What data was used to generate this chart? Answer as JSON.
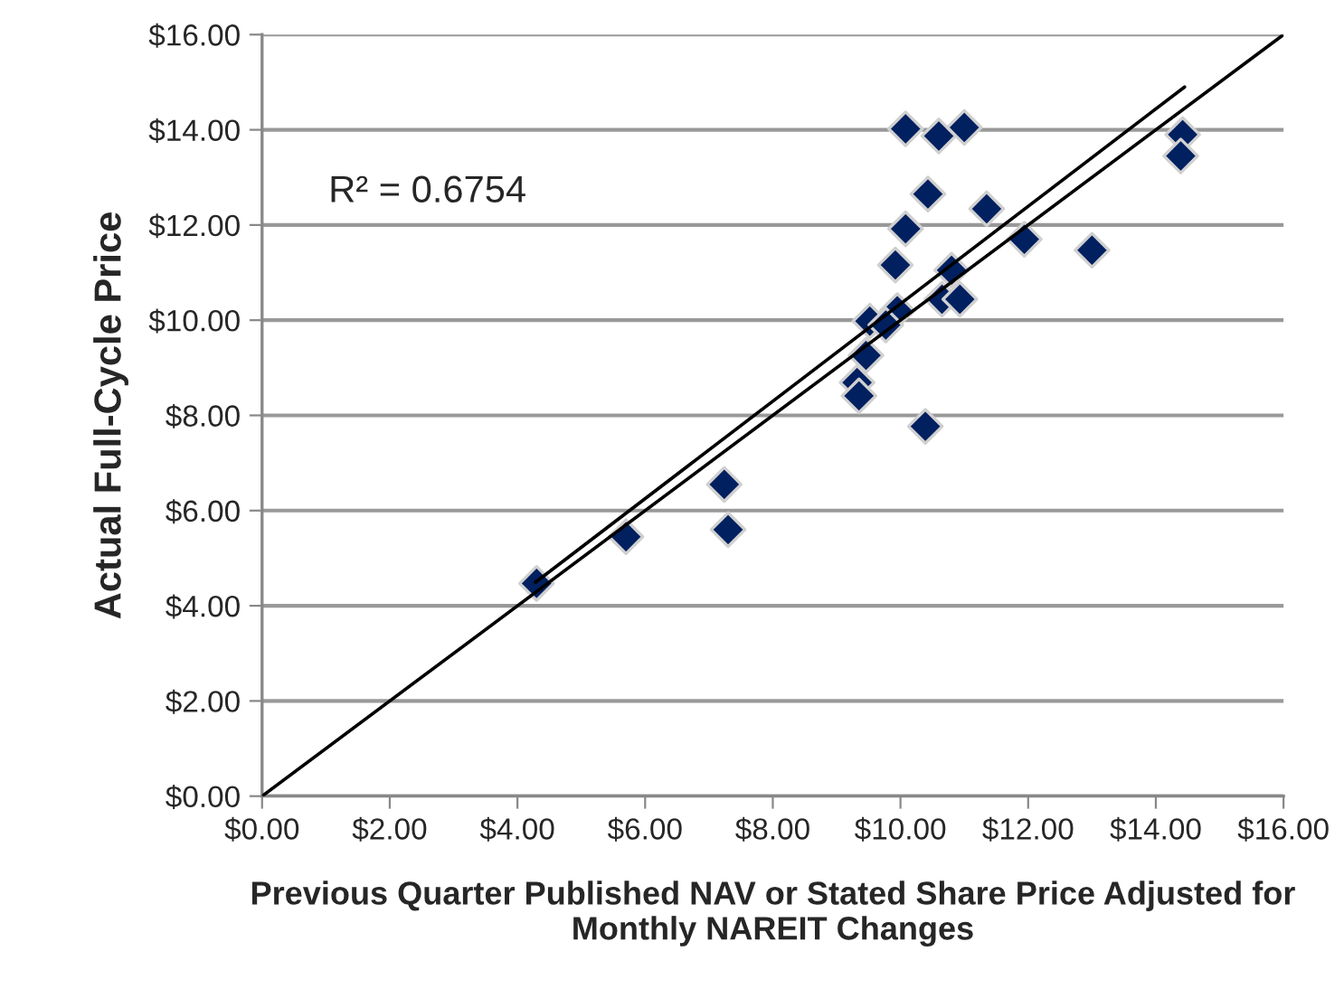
{
  "chart_data": {
    "type": "scatter",
    "xlabel": "Previous Quarter Published NAV or Stated Share Price Adjusted for Monthly NAREIT Changes",
    "ylabel": "Actual Full-Cycle Price",
    "annotations": [
      "R² = 0.6754"
    ],
    "series": [
      {
        "color": "#002060",
        "marker": "diamond",
        "x": [
          4.3,
          5.7,
          7.24,
          7.3,
          10.08,
          10.6,
          11.0,
          10.43,
          11.35,
          10.08,
          11.94,
          13.0,
          9.92,
          10.8,
          10.65,
          10.93,
          9.95,
          9.52,
          9.77,
          9.46,
          9.32,
          9.35,
          10.39,
          14.42,
          14.39
        ],
        "values": [
          4.47,
          5.45,
          6.55,
          5.6,
          14.02,
          13.87,
          14.05,
          12.65,
          12.34,
          11.92,
          11.7,
          11.47,
          11.16,
          11.05,
          10.44,
          10.44,
          10.2,
          9.98,
          9.9,
          9.26,
          8.69,
          8.41,
          7.77,
          13.9,
          13.45
        ]
      },
      {
        "type": "line",
        "color": "#000000",
        "marker": "none",
        "line_style": "solid",
        "x": [
          4.28,
          14.45
        ],
        "values": [
          4.49,
          14.9
        ]
      },
      {
        "type": "line",
        "color": "#000000",
        "marker": "none",
        "line_style": "solid",
        "x": [
          0,
          16
        ],
        "values": [
          0,
          16
        ]
      }
    ],
    "xlim": [
      0,
      16
    ],
    "ylim": [
      0,
      16
    ],
    "xticks": [
      {
        "value": 0,
        "label": "$0.00"
      },
      {
        "value": 2,
        "label": "$2.00"
      },
      {
        "value": 4,
        "label": "$4.00"
      },
      {
        "value": 6,
        "label": "$6.00"
      },
      {
        "value": 8,
        "label": "$8.00"
      },
      {
        "value": 10,
        "label": "$10.00"
      },
      {
        "value": 12,
        "label": "$12.00"
      },
      {
        "value": 14,
        "label": "$14.00"
      },
      {
        "value": 16,
        "label": "$16.00"
      }
    ],
    "yticks": [
      {
        "value": 0,
        "label": "$0.00"
      },
      {
        "value": 2,
        "label": "$2.00"
      },
      {
        "value": 4,
        "label": "$4.00"
      },
      {
        "value": 6,
        "label": "$6.00"
      },
      {
        "value": 8,
        "label": "$8.00"
      },
      {
        "value": 10,
        "label": "$10.00"
      },
      {
        "value": 12,
        "label": "$12.00"
      },
      {
        "value": 14,
        "label": "$14.00"
      },
      {
        "value": 16,
        "label": "$16.00"
      }
    ],
    "grid": "y",
    "legend": false
  }
}
